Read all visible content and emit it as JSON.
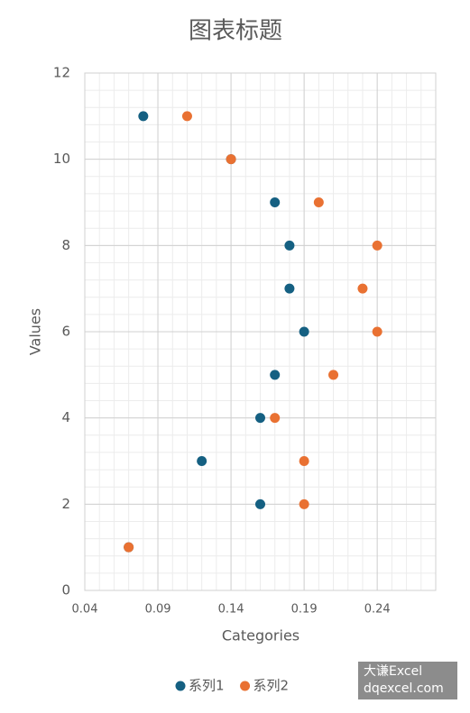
{
  "chart_data": {
    "type": "scatter",
    "title": "图表标题",
    "x_label": "Categories",
    "y_label": "Values",
    "xlim": [
      0.04,
      0.28
    ],
    "xticks": [
      0.04,
      0.09,
      0.14,
      0.19,
      0.24
    ],
    "ylim": [
      0,
      12
    ],
    "yticks": [
      0,
      2,
      4,
      6,
      8,
      10,
      12
    ],
    "grid": true,
    "minor_grid": true,
    "legend": "bottom",
    "series": [
      {
        "name": "系列1",
        "color": "#156082",
        "x": [
          0.07,
          0.16,
          0.12,
          0.16,
          0.17,
          0.19,
          0.18,
          0.18,
          0.17,
          0.14,
          0.08
        ],
        "values": [
          1,
          2,
          3,
          4,
          5,
          6,
          7,
          8,
          9,
          10,
          11
        ]
      },
      {
        "name": "系列2",
        "color": "#e97132",
        "x": [
          0.07,
          0.19,
          0.19,
          0.17,
          0.21,
          0.24,
          0.23,
          0.24,
          0.2,
          0.14,
          0.11
        ],
        "values": [
          1,
          2,
          3,
          4,
          5,
          6,
          7,
          8,
          9,
          10,
          11
        ]
      }
    ]
  },
  "watermark": [
    "大谦Excel",
    "dqexcel.com"
  ]
}
